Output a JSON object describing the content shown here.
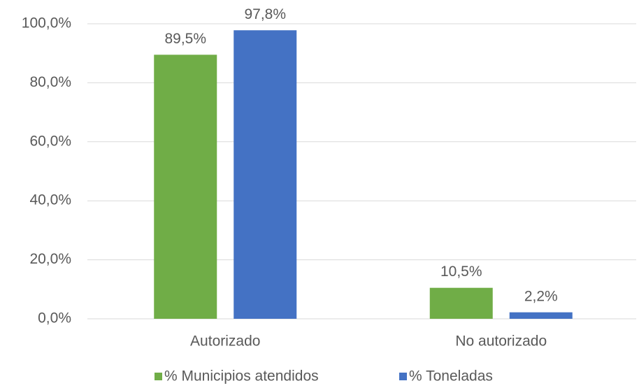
{
  "chart_data": {
    "type": "bar",
    "categories": [
      "Autorizado",
      "No autorizado"
    ],
    "series": [
      {
        "name": "% Municipios atendidos",
        "color": "#70ad47",
        "values": [
          89.5,
          10.5
        ],
        "value_labels": [
          "89,5%",
          "10,5%"
        ]
      },
      {
        "name": "% Toneladas",
        "color": "#4472c4",
        "values": [
          97.8,
          2.2
        ],
        "value_labels": [
          "97,8%",
          "2,2%"
        ]
      }
    ],
    "ylim": [
      0,
      100
    ],
    "yticks": [
      {
        "value": 0,
        "label": "0,0%"
      },
      {
        "value": 20,
        "label": "20,0%"
      },
      {
        "value": 40,
        "label": "40,0%"
      },
      {
        "value": 60,
        "label": "60,0%"
      },
      {
        "value": 80,
        "label": "80,0%"
      },
      {
        "value": 100,
        "label": "100,0%"
      }
    ],
    "grid": true,
    "legend": "bottom"
  }
}
